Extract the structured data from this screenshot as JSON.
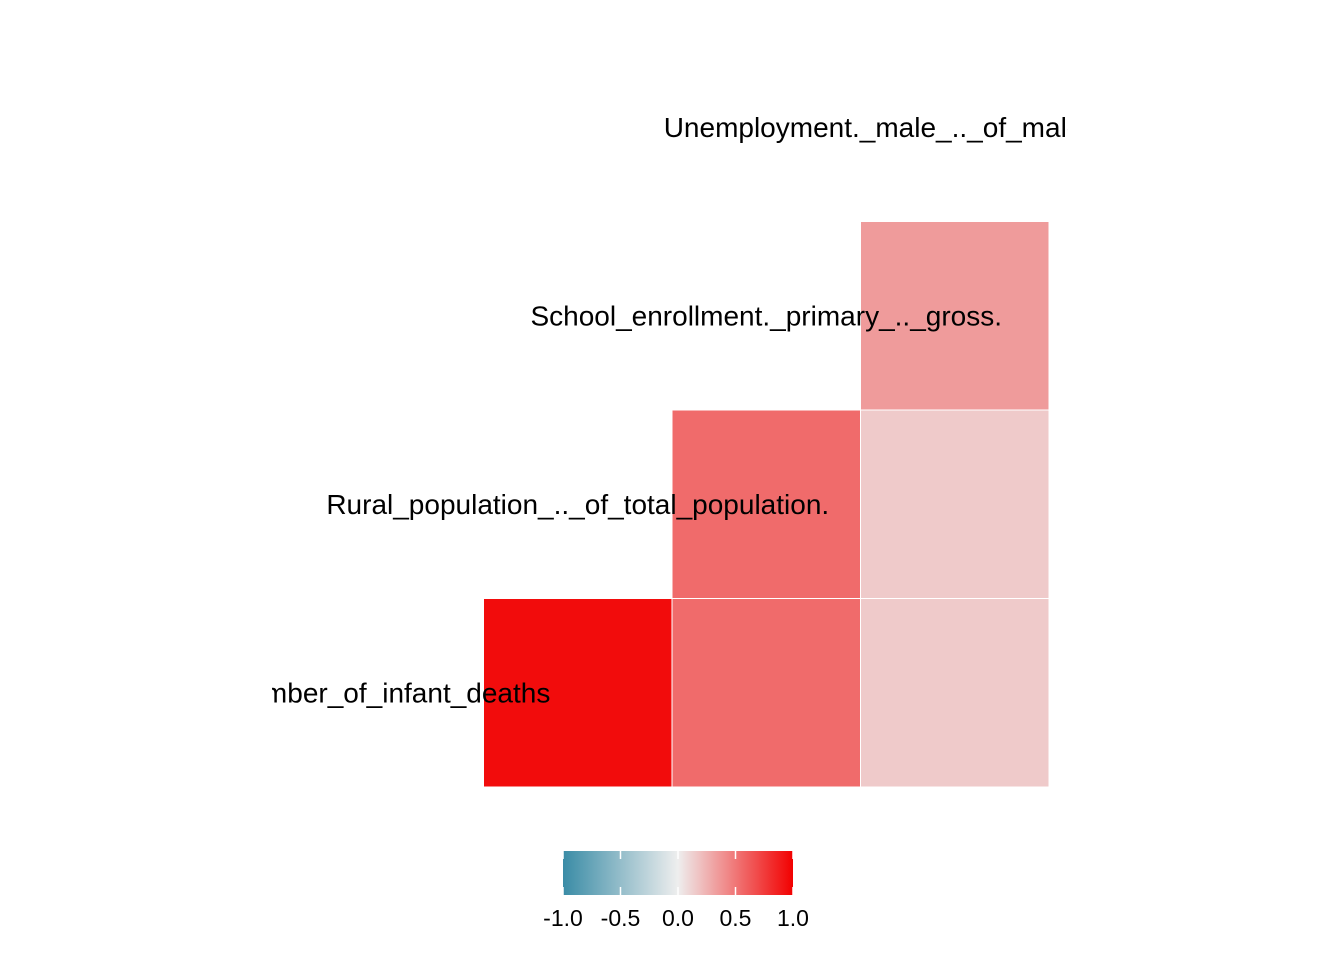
{
  "chart_data": {
    "type": "heatmap",
    "variables": [
      "Number_of_infant_deaths",
      "Rural_population_.._of_total_population.",
      "School_enrollment._primary_.._gross.",
      "Unemployment._male_.._of_male_labor_force."
    ],
    "cells": [
      {
        "row": "Number_of_infant_deaths",
        "col": "Rural_population_.._of_total_population.",
        "value": 0.95
      },
      {
        "row": "Number_of_infant_deaths",
        "col": "School_enrollment._primary_.._gross.",
        "value": 0.55
      },
      {
        "row": "Number_of_infant_deaths",
        "col": "Unemployment._male_.._of_male_labor_force.",
        "value": 0.15
      },
      {
        "row": "Rural_population_.._of_total_population.",
        "col": "School_enrollment._primary_.._gross.",
        "value": 0.55
      },
      {
        "row": "Rural_population_.._of_total_population.",
        "col": "Unemployment._male_.._of_male_labor_force.",
        "value": 0.15
      },
      {
        "row": "School_enrollment._primary_.._gross.",
        "col": "Unemployment._male_.._of_male_labor_force.",
        "value": 0.35
      }
    ],
    "legend": {
      "ticks": [
        "-1.0",
        "-0.5",
        "0.0",
        "0.5",
        "1.0"
      ],
      "tick_values": [
        -1.0,
        -0.5,
        0.0,
        0.5,
        1.0
      ],
      "limits": [
        -1,
        1
      ],
      "low_color": "#3A8CA6",
      "mid_color": "#EEEEEE",
      "high_color": "#F20000",
      "placement": "bottom"
    }
  }
}
